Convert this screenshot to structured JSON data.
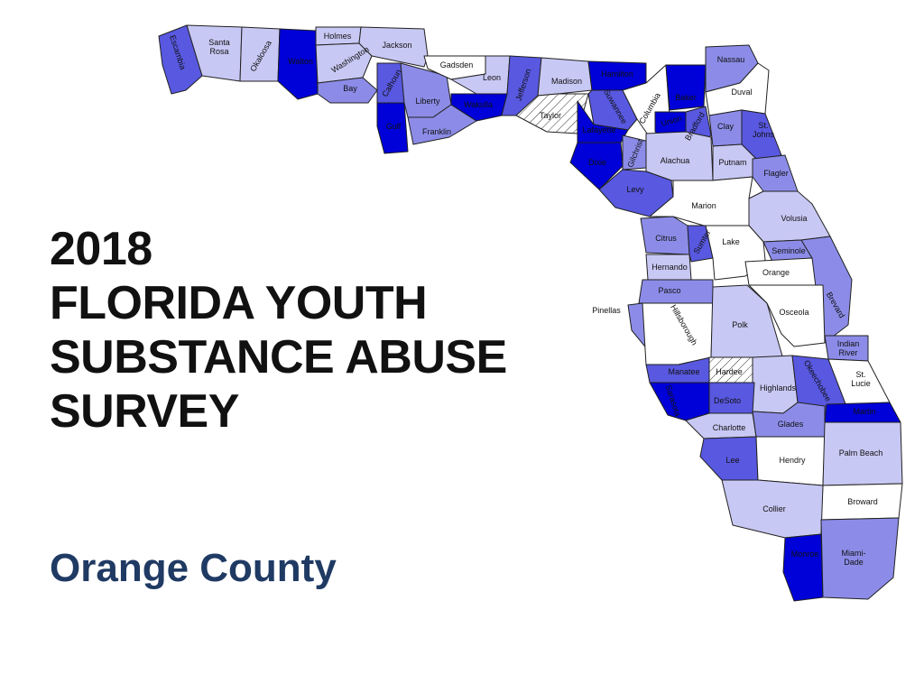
{
  "slide": {
    "title_lines": [
      "2018",
      "FLORIDA YOUTH",
      "SUBSTANCE ABUSE",
      "SURVEY"
    ],
    "subtitle": "Orange County"
  },
  "colors": {
    "title": "#111111",
    "subtitle": "#1f3a63",
    "fill_darkest": "#0000d8",
    "fill_dark": "#5858e0",
    "fill_medium": "#8c8ce8",
    "fill_light": "#c8c8f4",
    "fill_none": "#ffffff",
    "fill_hatched": "hatch",
    "outline": "#222222"
  },
  "map": {
    "counties": [
      {
        "name": "Escambia",
        "label": "Escambia",
        "shade": "fill_dark"
      },
      {
        "name": "Santa Rosa",
        "label": "Santa\nRosa",
        "shade": "fill_light"
      },
      {
        "name": "Okaloosa",
        "label": "Okaloosa",
        "shade": "fill_light"
      },
      {
        "name": "Walton",
        "label": "Walton",
        "shade": "fill_darkest"
      },
      {
        "name": "Holmes",
        "label": "Holmes",
        "shade": "fill_light"
      },
      {
        "name": "Washington",
        "label": "Washington",
        "shade": "fill_light"
      },
      {
        "name": "Jackson",
        "label": "Jackson",
        "shade": "fill_light"
      },
      {
        "name": "Bay",
        "label": "Bay",
        "shade": "fill_medium"
      },
      {
        "name": "Calhoun",
        "label": "Calhoun",
        "shade": "fill_dark"
      },
      {
        "name": "Gulf",
        "label": "Gulf",
        "shade": "fill_darkest"
      },
      {
        "name": "Liberty",
        "label": "Liberty",
        "shade": "fill_medium"
      },
      {
        "name": "Franklin",
        "label": "Franklin",
        "shade": "fill_medium"
      },
      {
        "name": "Gadsden",
        "label": "Gadsden",
        "shade": "fill_none"
      },
      {
        "name": "Leon",
        "label": "Leon",
        "shade": "fill_light"
      },
      {
        "name": "Wakulla",
        "label": "Wakulla",
        "shade": "fill_darkest"
      },
      {
        "name": "Jefferson",
        "label": "Jefferson",
        "shade": "fill_dark"
      },
      {
        "name": "Madison",
        "label": "Madison",
        "shade": "fill_light"
      },
      {
        "name": "Taylor",
        "label": "Taylor",
        "shade": "fill_hatched"
      },
      {
        "name": "Hamilton",
        "label": "Hamilton",
        "shade": "fill_darkest"
      },
      {
        "name": "Suwannee",
        "label": "Suwannee",
        "shade": "fill_dark"
      },
      {
        "name": "Lafayette",
        "label": "Lafayette",
        "shade": "fill_darkest"
      },
      {
        "name": "Dixie",
        "label": "Dixie",
        "shade": "fill_darkest"
      },
      {
        "name": "Columbia",
        "label": "Columbia",
        "shade": "fill_none"
      },
      {
        "name": "Baker",
        "label": "Baker",
        "shade": "fill_darkest"
      },
      {
        "name": "Union",
        "label": "Union",
        "shade": "fill_darkest"
      },
      {
        "name": "Bradford",
        "label": "Bradford",
        "shade": "fill_dark"
      },
      {
        "name": "Gilchrist",
        "label": "Gilchrist",
        "shade": "fill_medium"
      },
      {
        "name": "Alachua",
        "label": "Alachua",
        "shade": "fill_light"
      },
      {
        "name": "Nassau",
        "label": "Nassau",
        "shade": "fill_medium"
      },
      {
        "name": "Duval",
        "label": "Duval",
        "shade": "fill_none"
      },
      {
        "name": "Clay",
        "label": "Clay",
        "shade": "fill_medium"
      },
      {
        "name": "St. Johns",
        "label": "St.\nJohns",
        "shade": "fill_dark"
      },
      {
        "name": "Putnam",
        "label": "Putnam",
        "shade": "fill_light"
      },
      {
        "name": "Flagler",
        "label": "Flagler",
        "shade": "fill_medium"
      },
      {
        "name": "Levy",
        "label": "Levy",
        "shade": "fill_dark"
      },
      {
        "name": "Marion",
        "label": "Marion",
        "shade": "fill_none"
      },
      {
        "name": "Volusia",
        "label": "Volusia",
        "shade": "fill_light"
      },
      {
        "name": "Citrus",
        "label": "Citrus",
        "shade": "fill_medium"
      },
      {
        "name": "Sumter",
        "label": "Sumter",
        "shade": "fill_dark"
      },
      {
        "name": "Lake",
        "label": "Lake",
        "shade": "fill_none"
      },
      {
        "name": "Seminole",
        "label": "Seminole",
        "shade": "fill_medium"
      },
      {
        "name": "Hernando",
        "label": "Hernando",
        "shade": "fill_light"
      },
      {
        "name": "Orange",
        "label": "Orange",
        "shade": "fill_none"
      },
      {
        "name": "Pasco",
        "label": "Pasco",
        "shade": "fill_medium"
      },
      {
        "name": "Brevard",
        "label": "Brevard",
        "shade": "fill_medium"
      },
      {
        "name": "Pinellas",
        "label": "Pinellas",
        "shade": "fill_medium"
      },
      {
        "name": "Hillsborough",
        "label": "Hillsborough",
        "shade": "fill_none"
      },
      {
        "name": "Polk",
        "label": "Polk",
        "shade": "fill_light"
      },
      {
        "name": "Osceola",
        "label": "Osceola",
        "shade": "fill_none"
      },
      {
        "name": "Indian River",
        "label": "Indian\nRiver",
        "shade": "fill_medium"
      },
      {
        "name": "Manatee",
        "label": "Manatee",
        "shade": "fill_dark"
      },
      {
        "name": "Hardee",
        "label": "Hardee",
        "shade": "fill_hatched"
      },
      {
        "name": "Highlands",
        "label": "Highlands",
        "shade": "fill_light"
      },
      {
        "name": "Okeechobee",
        "label": "Okeechobee",
        "shade": "fill_dark"
      },
      {
        "name": "St. Lucie",
        "label": "St.\nLucie",
        "shade": "fill_none"
      },
      {
        "name": "Sarasota",
        "label": "Sarasota",
        "shade": "fill_darkest"
      },
      {
        "name": "DeSoto",
        "label": "DeSoto",
        "shade": "fill_dark"
      },
      {
        "name": "Martin",
        "label": "Martin",
        "shade": "fill_darkest"
      },
      {
        "name": "Charlotte",
        "label": "Charlotte",
        "shade": "fill_light"
      },
      {
        "name": "Glades",
        "label": "Glades",
        "shade": "fill_medium"
      },
      {
        "name": "Lee",
        "label": "Lee",
        "shade": "fill_dark"
      },
      {
        "name": "Hendry",
        "label": "Hendry",
        "shade": "fill_none"
      },
      {
        "name": "Palm Beach",
        "label": "Palm Beach",
        "shade": "fill_light"
      },
      {
        "name": "Broward",
        "label": "Broward",
        "shade": "fill_none"
      },
      {
        "name": "Collier",
        "label": "Collier",
        "shade": "fill_light"
      },
      {
        "name": "Monroe",
        "label": "Monroe",
        "shade": "fill_darkest"
      },
      {
        "name": "Miami-Dade",
        "label": "Miami-\nDade",
        "shade": "fill_medium"
      }
    ]
  }
}
